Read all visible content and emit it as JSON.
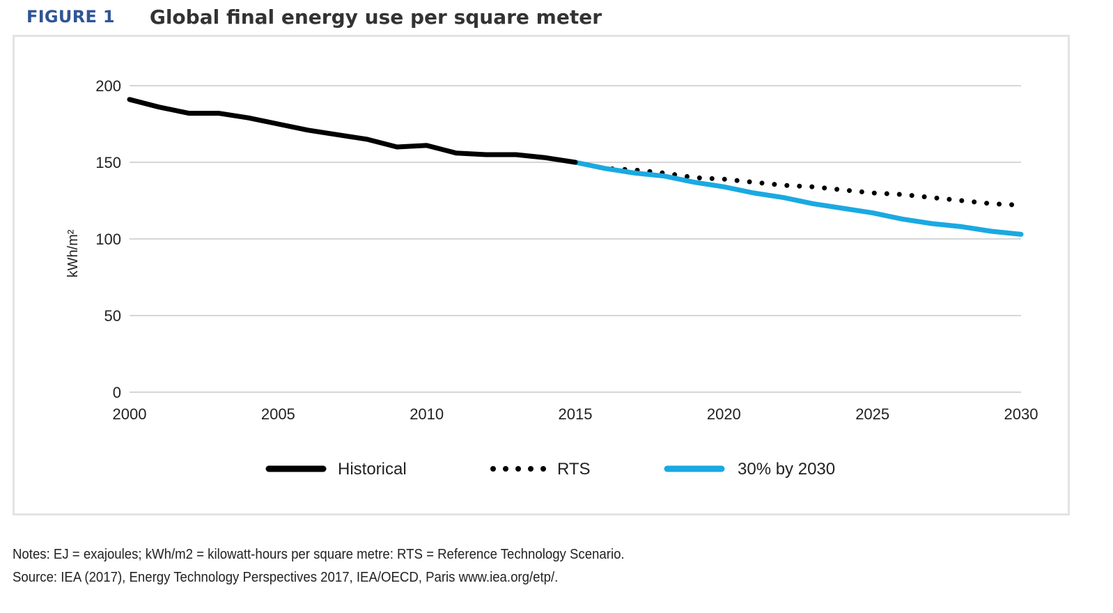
{
  "figure": {
    "label": "FIGURE 1",
    "title": "Global final energy use per square meter"
  },
  "notes": {
    "line1": "Notes: EJ = exajoules; kWh/m2 = kilowatt-hours per square metre: RTS = Reference Technology Scenario.",
    "line2": "Source: IEA (2017), Energy Technology Perspectives 2017, IEA/OECD, Paris www.iea.org/etp/."
  },
  "chart_data": {
    "type": "line",
    "title": "Global final energy use per square meter",
    "xlabel": "",
    "ylabel": "kWh/m²",
    "xlim": [
      2000,
      2030
    ],
    "ylim": [
      0,
      200
    ],
    "xticks": [
      2000,
      2005,
      2010,
      2015,
      2020,
      2025,
      2030
    ],
    "yticks": [
      0,
      50,
      100,
      150,
      200
    ],
    "grid": "horizontal",
    "legend_position": "bottom",
    "series": [
      {
        "name": "Historical",
        "style": "solid",
        "color": "#000000",
        "x": [
          2000,
          2001,
          2002,
          2003,
          2004,
          2005,
          2006,
          2007,
          2008,
          2009,
          2010,
          2011,
          2012,
          2013,
          2014,
          2015
        ],
        "y": [
          191,
          186,
          182,
          182,
          179,
          175,
          171,
          168,
          165,
          160,
          161,
          156,
          155,
          155,
          153,
          150
        ]
      },
      {
        "name": "RTS",
        "style": "dotted",
        "color": "#000000",
        "x": [
          2015,
          2016,
          2017,
          2018,
          2019,
          2020,
          2021,
          2022,
          2023,
          2024,
          2025,
          2026,
          2027,
          2028,
          2029,
          2030
        ],
        "y": [
          150,
          146,
          145,
          143,
          140,
          139,
          137,
          135,
          134,
          132,
          130,
          129,
          127,
          125,
          123,
          122
        ]
      },
      {
        "name": "30% by 2030",
        "style": "solid",
        "color": "#1aa9e1",
        "x": [
          2015,
          2016,
          2017,
          2018,
          2019,
          2020,
          2021,
          2022,
          2023,
          2024,
          2025,
          2026,
          2027,
          2028,
          2029,
          2030
        ],
        "y": [
          150,
          146,
          143,
          141,
          137,
          134,
          130,
          127,
          123,
          120,
          117,
          113,
          110,
          108,
          105,
          103
        ]
      }
    ]
  }
}
